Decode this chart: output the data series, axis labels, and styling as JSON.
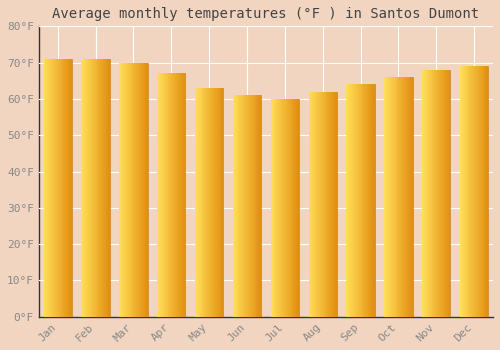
{
  "title": "Average monthly temperatures (°F ) in Santos Dumont",
  "categories": [
    "Jan",
    "Feb",
    "Mar",
    "Apr",
    "May",
    "Jun",
    "Jul",
    "Aug",
    "Sep",
    "Oct",
    "Nov",
    "Dec"
  ],
  "values": [
    71,
    71,
    70,
    67,
    63,
    61,
    60,
    62,
    64,
    66,
    68,
    69
  ],
  "bar_color_main": "#F5A623",
  "bar_color_left": "#FFD166",
  "bar_color_right": "#E8930A",
  "background_color": "#F2D5C0",
  "plot_bg_color": "#F2D5C0",
  "grid_color": "#FFFFFF",
  "spine_color": "#333333",
  "title_color": "#444444",
  "label_color": "#888888",
  "ylim": [
    0,
    80
  ],
  "ytick_step": 10,
  "title_fontsize": 10,
  "tick_fontsize": 8,
  "bar_width": 0.75
}
